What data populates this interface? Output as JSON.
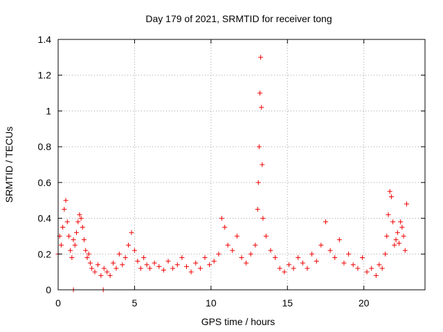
{
  "chart_data": {
    "type": "scatter",
    "title": "Day 179 of 2021, SRMTID for receiver tong",
    "xlabel": "GPS time / hours",
    "ylabel": "SRMTID / TECUs",
    "xlim": [
      0,
      24
    ],
    "ylim": [
      0,
      1.4
    ],
    "xticks": [
      0,
      5,
      10,
      15,
      20
    ],
    "xtick_labels": [
      "0",
      "5",
      "10",
      "15",
      "20"
    ],
    "yticks": [
      0,
      0.2,
      0.4,
      0.6,
      0.8,
      1.0,
      1.2,
      1.4
    ],
    "ytick_labels": [
      "0",
      "0.2",
      "0.4",
      "0.6",
      "0.8",
      "1",
      "1.2",
      "1.4"
    ],
    "grid": true,
    "marker": "plus",
    "color": "#ee0000",
    "series": [
      {
        "name": "SRMTID",
        "x": [
          0.0,
          0.1,
          0.2,
          0.3,
          0.4,
          0.5,
          0.6,
          0.7,
          0.8,
          0.9,
          1.0,
          1.1,
          1.2,
          1.3,
          1.4,
          1.5,
          1.6,
          1.7,
          1.8,
          1.9,
          2.0,
          2.1,
          2.2,
          2.4,
          2.6,
          2.8,
          3.0,
          3.2,
          3.4,
          3.6,
          3.8,
          4.0,
          4.2,
          4.4,
          4.6,
          4.8,
          5.0,
          5.2,
          5.4,
          5.6,
          5.8,
          6.0,
          6.3,
          6.6,
          6.9,
          7.2,
          7.5,
          7.8,
          8.1,
          8.4,
          8.7,
          9.0,
          9.3,
          9.6,
          9.9,
          10.2,
          10.5,
          10.7,
          10.9,
          11.1,
          11.4,
          11.7,
          12.0,
          12.3,
          12.6,
          12.9,
          13.05,
          13.1,
          13.15,
          13.2,
          13.25,
          13.3,
          13.35,
          13.4,
          13.6,
          13.9,
          14.2,
          14.5,
          14.8,
          15.1,
          15.4,
          15.7,
          16.0,
          16.3,
          16.6,
          16.9,
          17.2,
          17.5,
          17.8,
          18.1,
          18.4,
          18.7,
          19.0,
          19.3,
          19.6,
          19.9,
          20.2,
          20.5,
          20.8,
          21.0,
          21.2,
          21.4,
          21.5,
          21.6,
          21.7,
          21.8,
          21.9,
          22.0,
          22.1,
          22.2,
          22.3,
          22.4,
          22.5,
          22.6,
          22.7,
          22.8,
          1.0,
          2.95
        ],
        "y": [
          0.2,
          0.3,
          0.25,
          0.35,
          0.45,
          0.5,
          0.38,
          0.3,
          0.22,
          0.18,
          0.28,
          0.25,
          0.32,
          0.38,
          0.42,
          0.4,
          0.35,
          0.28,
          0.22,
          0.18,
          0.2,
          0.15,
          0.12,
          0.1,
          0.14,
          0.08,
          0.12,
          0.1,
          0.08,
          0.15,
          0.12,
          0.2,
          0.14,
          0.18,
          0.25,
          0.32,
          0.22,
          0.16,
          0.12,
          0.18,
          0.14,
          0.12,
          0.15,
          0.13,
          0.11,
          0.16,
          0.12,
          0.14,
          0.18,
          0.13,
          0.1,
          0.15,
          0.12,
          0.18,
          0.14,
          0.16,
          0.2,
          0.4,
          0.35,
          0.25,
          0.22,
          0.3,
          0.18,
          0.15,
          0.2,
          0.25,
          0.45,
          0.6,
          0.8,
          1.1,
          1.3,
          1.02,
          0.7,
          0.4,
          0.3,
          0.22,
          0.18,
          0.12,
          0.1,
          0.14,
          0.12,
          0.18,
          0.15,
          0.12,
          0.2,
          0.16,
          0.25,
          0.38,
          0.22,
          0.18,
          0.28,
          0.15,
          0.2,
          0.14,
          0.12,
          0.18,
          0.1,
          0.12,
          0.08,
          0.14,
          0.12,
          0.2,
          0.3,
          0.42,
          0.55,
          0.52,
          0.38,
          0.25,
          0.28,
          0.32,
          0.26,
          0.38,
          0.35,
          0.3,
          0.22,
          0.48,
          0.0,
          0.0
        ]
      }
    ]
  }
}
